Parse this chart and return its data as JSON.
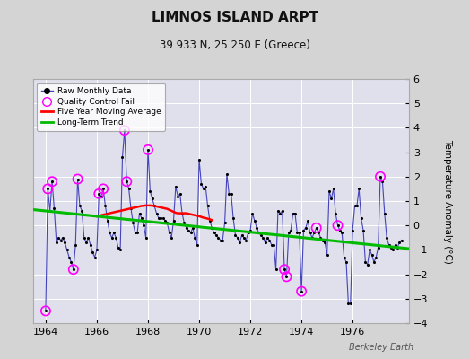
{
  "title": "LIMNOS ISLAND ARPT",
  "subtitle": "39.933 N, 25.250 E (Greece)",
  "ylabel": "Temperature Anomaly (°C)",
  "watermark": "Berkeley Earth",
  "xlim": [
    1963.5,
    1978.2
  ],
  "ylim": [
    -4,
    6
  ],
  "yticks": [
    -4,
    -3,
    -2,
    -1,
    0,
    1,
    2,
    3,
    4,
    5,
    6
  ],
  "xticks": [
    1964,
    1966,
    1968,
    1970,
    1972,
    1974,
    1976
  ],
  "bg_color": "#d4d4d4",
  "plot_bg_color": "#e0e0ec",
  "grid_color": "#ffffff",
  "raw_line_color": "#4444bb",
  "raw_dot_color": "#000000",
  "qc_color": "#ff00ff",
  "moving_avg_color": "#ff0000",
  "trend_color": "#00bb00",
  "raw_data": [
    [
      1964.0,
      -3.5
    ],
    [
      1964.083,
      1.5
    ],
    [
      1964.167,
      0.6
    ],
    [
      1964.25,
      1.8
    ],
    [
      1964.333,
      0.7
    ],
    [
      1964.417,
      -0.7
    ],
    [
      1964.5,
      -0.5
    ],
    [
      1964.583,
      -0.6
    ],
    [
      1964.667,
      -0.5
    ],
    [
      1964.75,
      -0.7
    ],
    [
      1964.833,
      -1.0
    ],
    [
      1964.917,
      -1.3
    ],
    [
      1965.0,
      -1.5
    ],
    [
      1965.083,
      -1.8
    ],
    [
      1965.167,
      -0.8
    ],
    [
      1965.25,
      1.9
    ],
    [
      1965.333,
      0.8
    ],
    [
      1965.417,
      0.6
    ],
    [
      1965.5,
      -0.5
    ],
    [
      1965.583,
      -0.7
    ],
    [
      1965.667,
      -0.5
    ],
    [
      1965.75,
      -0.8
    ],
    [
      1965.833,
      -1.1
    ],
    [
      1965.917,
      -1.3
    ],
    [
      1966.0,
      -1.0
    ],
    [
      1966.083,
      1.3
    ],
    [
      1966.167,
      1.2
    ],
    [
      1966.25,
      1.5
    ],
    [
      1966.333,
      0.8
    ],
    [
      1966.417,
      0.2
    ],
    [
      1966.5,
      -0.3
    ],
    [
      1966.583,
      -0.5
    ],
    [
      1966.667,
      -0.3
    ],
    [
      1966.75,
      -0.5
    ],
    [
      1966.833,
      -0.9
    ],
    [
      1966.917,
      -1.0
    ],
    [
      1967.0,
      2.8
    ],
    [
      1967.083,
      3.9
    ],
    [
      1967.167,
      1.8
    ],
    [
      1967.25,
      1.5
    ],
    [
      1967.333,
      0.7
    ],
    [
      1967.417,
      0.1
    ],
    [
      1967.5,
      -0.3
    ],
    [
      1967.583,
      -0.3
    ],
    [
      1967.667,
      0.5
    ],
    [
      1967.75,
      0.3
    ],
    [
      1967.833,
      0.0
    ],
    [
      1967.917,
      -0.5
    ],
    [
      1968.0,
      3.1
    ],
    [
      1968.083,
      1.4
    ],
    [
      1968.167,
      1.1
    ],
    [
      1968.25,
      0.8
    ],
    [
      1968.333,
      0.5
    ],
    [
      1968.417,
      0.3
    ],
    [
      1968.5,
      0.3
    ],
    [
      1968.583,
      0.3
    ],
    [
      1968.667,
      0.2
    ],
    [
      1968.75,
      0.1
    ],
    [
      1968.833,
      -0.3
    ],
    [
      1968.917,
      -0.5
    ],
    [
      1969.0,
      0.2
    ],
    [
      1969.083,
      1.6
    ],
    [
      1969.167,
      1.2
    ],
    [
      1969.25,
      1.3
    ],
    [
      1969.333,
      0.5
    ],
    [
      1969.417,
      0.1
    ],
    [
      1969.5,
      -0.1
    ],
    [
      1969.583,
      -0.2
    ],
    [
      1969.667,
      -0.3
    ],
    [
      1969.75,
      -0.1
    ],
    [
      1969.833,
      -0.5
    ],
    [
      1969.917,
      -0.8
    ],
    [
      1970.0,
      2.7
    ],
    [
      1970.083,
      1.7
    ],
    [
      1970.167,
      1.5
    ],
    [
      1970.25,
      1.6
    ],
    [
      1970.333,
      0.8
    ],
    [
      1970.417,
      0.2
    ],
    [
      1970.5,
      -0.1
    ],
    [
      1970.583,
      -0.3
    ],
    [
      1970.667,
      -0.4
    ],
    [
      1970.75,
      -0.5
    ],
    [
      1970.833,
      -0.6
    ],
    [
      1970.917,
      -0.6
    ],
    [
      1971.0,
      0.1
    ],
    [
      1971.083,
      2.1
    ],
    [
      1971.167,
      1.3
    ],
    [
      1971.25,
      1.3
    ],
    [
      1971.333,
      0.3
    ],
    [
      1971.417,
      -0.4
    ],
    [
      1971.5,
      -0.5
    ],
    [
      1971.583,
      -0.7
    ],
    [
      1971.667,
      -0.4
    ],
    [
      1971.75,
      -0.5
    ],
    [
      1971.833,
      -0.6
    ],
    [
      1971.917,
      -0.3
    ],
    [
      1972.0,
      -0.2
    ],
    [
      1972.083,
      0.5
    ],
    [
      1972.167,
      0.2
    ],
    [
      1972.25,
      -0.1
    ],
    [
      1972.333,
      -0.3
    ],
    [
      1972.417,
      -0.4
    ],
    [
      1972.5,
      -0.5
    ],
    [
      1972.583,
      -0.7
    ],
    [
      1972.667,
      -0.5
    ],
    [
      1972.75,
      -0.6
    ],
    [
      1972.833,
      -0.8
    ],
    [
      1972.917,
      -0.8
    ],
    [
      1973.0,
      -1.8
    ],
    [
      1973.083,
      0.6
    ],
    [
      1973.167,
      0.5
    ],
    [
      1973.25,
      0.6
    ],
    [
      1973.333,
      -1.8
    ],
    [
      1973.417,
      -2.1
    ],
    [
      1973.5,
      -0.3
    ],
    [
      1973.583,
      -0.2
    ],
    [
      1973.667,
      0.5
    ],
    [
      1973.75,
      0.5
    ],
    [
      1973.833,
      -0.3
    ],
    [
      1973.917,
      -0.3
    ],
    [
      1974.0,
      -2.7
    ],
    [
      1974.083,
      -0.2
    ],
    [
      1974.167,
      -0.1
    ],
    [
      1974.25,
      0.2
    ],
    [
      1974.333,
      -0.3
    ],
    [
      1974.417,
      -0.5
    ],
    [
      1974.5,
      -0.3
    ],
    [
      1974.583,
      -0.1
    ],
    [
      1974.667,
      -0.3
    ],
    [
      1974.75,
      -0.5
    ],
    [
      1974.833,
      -0.6
    ],
    [
      1974.917,
      -0.7
    ],
    [
      1975.0,
      -1.2
    ],
    [
      1975.083,
      1.4
    ],
    [
      1975.167,
      1.1
    ],
    [
      1975.25,
      1.5
    ],
    [
      1975.333,
      0.5
    ],
    [
      1975.417,
      0.0
    ],
    [
      1975.5,
      -0.2
    ],
    [
      1975.583,
      -0.3
    ],
    [
      1975.667,
      -1.3
    ],
    [
      1975.75,
      -1.5
    ],
    [
      1975.833,
      -3.2
    ],
    [
      1975.917,
      -3.2
    ],
    [
      1976.0,
      -0.2
    ],
    [
      1976.083,
      0.8
    ],
    [
      1976.167,
      0.8
    ],
    [
      1976.25,
      1.5
    ],
    [
      1976.333,
      0.3
    ],
    [
      1976.417,
      -0.2
    ],
    [
      1976.5,
      -1.5
    ],
    [
      1976.583,
      -1.6
    ],
    [
      1976.667,
      -1.0
    ],
    [
      1976.75,
      -1.2
    ],
    [
      1976.833,
      -1.5
    ],
    [
      1976.917,
      -1.3
    ],
    [
      1977.0,
      -0.9
    ],
    [
      1977.083,
      2.0
    ],
    [
      1977.167,
      1.8
    ],
    [
      1977.25,
      0.5
    ],
    [
      1977.333,
      -0.5
    ],
    [
      1977.417,
      -0.8
    ],
    [
      1977.5,
      -0.9
    ],
    [
      1977.583,
      -1.0
    ],
    [
      1977.667,
      -0.8
    ],
    [
      1977.75,
      -0.9
    ],
    [
      1977.833,
      -0.7
    ],
    [
      1977.917,
      -0.6
    ]
  ],
  "qc_fail": [
    [
      1964.0,
      -3.5
    ],
    [
      1964.083,
      1.5
    ],
    [
      1964.25,
      1.8
    ],
    [
      1965.083,
      -1.8
    ],
    [
      1965.25,
      1.9
    ],
    [
      1966.083,
      1.3
    ],
    [
      1966.25,
      1.5
    ],
    [
      1967.083,
      3.9
    ],
    [
      1967.167,
      1.8
    ],
    [
      1968.0,
      3.1
    ],
    [
      1973.333,
      -1.8
    ],
    [
      1973.417,
      -2.1
    ],
    [
      1974.0,
      -2.7
    ],
    [
      1974.583,
      -0.1
    ],
    [
      1975.417,
      0.0
    ],
    [
      1977.083,
      2.0
    ]
  ],
  "moving_avg": [
    [
      1966.0,
      0.38
    ],
    [
      1966.083,
      0.4
    ],
    [
      1966.167,
      0.42
    ],
    [
      1966.25,
      0.44
    ],
    [
      1966.333,
      0.46
    ],
    [
      1966.417,
      0.48
    ],
    [
      1966.5,
      0.5
    ],
    [
      1966.583,
      0.52
    ],
    [
      1966.667,
      0.54
    ],
    [
      1966.75,
      0.56
    ],
    [
      1966.833,
      0.58
    ],
    [
      1966.917,
      0.6
    ],
    [
      1967.0,
      0.62
    ],
    [
      1967.083,
      0.64
    ],
    [
      1967.167,
      0.66
    ],
    [
      1967.25,
      0.68
    ],
    [
      1967.333,
      0.7
    ],
    [
      1967.417,
      0.72
    ],
    [
      1967.5,
      0.74
    ],
    [
      1967.583,
      0.76
    ],
    [
      1967.667,
      0.78
    ],
    [
      1967.75,
      0.8
    ],
    [
      1967.833,
      0.81
    ],
    [
      1967.917,
      0.82
    ],
    [
      1968.0,
      0.82
    ],
    [
      1968.083,
      0.82
    ],
    [
      1968.167,
      0.81
    ],
    [
      1968.25,
      0.8
    ],
    [
      1968.333,
      0.78
    ],
    [
      1968.417,
      0.76
    ],
    [
      1968.5,
      0.74
    ],
    [
      1968.583,
      0.72
    ],
    [
      1968.667,
      0.7
    ],
    [
      1968.75,
      0.68
    ],
    [
      1968.833,
      0.64
    ],
    [
      1968.917,
      0.6
    ],
    [
      1969.0,
      0.56
    ],
    [
      1969.083,
      0.52
    ],
    [
      1969.167,
      0.5
    ],
    [
      1969.25,
      0.5
    ],
    [
      1969.333,
      0.5
    ],
    [
      1969.417,
      0.5
    ],
    [
      1969.5,
      0.5
    ],
    [
      1969.583,
      0.48
    ],
    [
      1969.667,
      0.46
    ],
    [
      1969.75,
      0.44
    ],
    [
      1969.833,
      0.42
    ],
    [
      1969.917,
      0.4
    ],
    [
      1970.0,
      0.38
    ],
    [
      1970.083,
      0.35
    ],
    [
      1970.167,
      0.32
    ],
    [
      1970.25,
      0.3
    ],
    [
      1970.333,
      0.28
    ],
    [
      1970.417,
      0.25
    ],
    [
      1970.5,
      0.22
    ]
  ],
  "trend_line": [
    [
      1963.5,
      0.65
    ],
    [
      1978.2,
      -0.95
    ]
  ]
}
